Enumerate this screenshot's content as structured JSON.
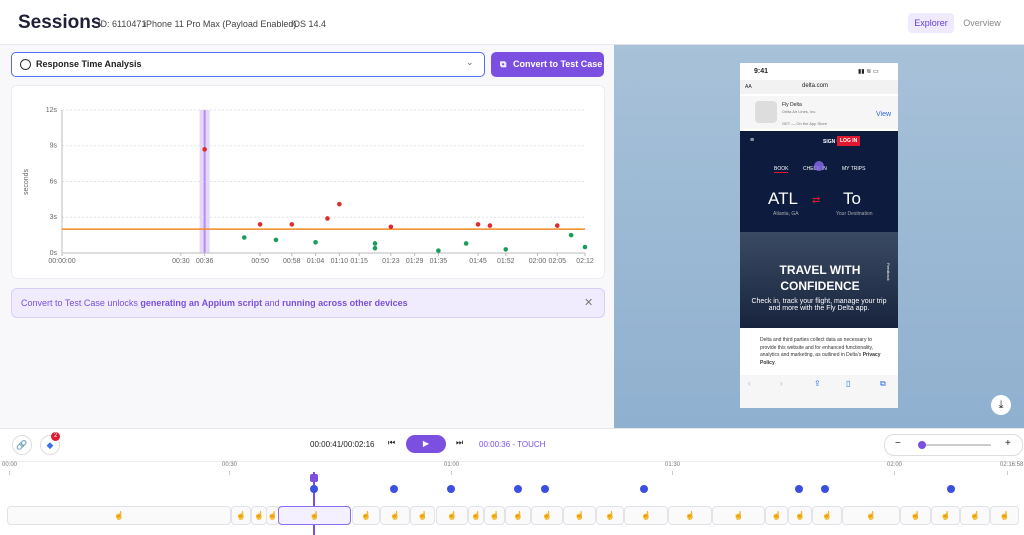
{
  "header": {
    "title": "Sessions",
    "id": "ID: 6110471",
    "device": "iPhone 11 Pro Max (Payload Enabled)",
    "os": "iOS 14.4",
    "tabs": [
      "Explorer",
      "Overview"
    ]
  },
  "toolbar": {
    "dropdown": "Response Time Analysis",
    "button": "Convert to Test Case"
  },
  "chart_data": {
    "type": "scatter",
    "y_label": "seconds",
    "xlim": [
      0,
      132
    ],
    "ylim": [
      0,
      12
    ],
    "xticks": [
      {
        "value": 0,
        "label": "00:00:00"
      },
      {
        "value": 30,
        "label": "00:30"
      },
      {
        "value": 36,
        "label": "00:36"
      },
      {
        "value": 50,
        "label": "00:50"
      },
      {
        "value": 58,
        "label": "00:58"
      },
      {
        "value": 64,
        "label": "01:04"
      },
      {
        "value": 70,
        "label": "01:10"
      },
      {
        "value": 75,
        "label": "01:15"
      },
      {
        "value": 83,
        "label": "01:23"
      },
      {
        "value": 89,
        "label": "01:29"
      },
      {
        "value": 95,
        "label": "01:35"
      },
      {
        "value": 105,
        "label": "01:45"
      },
      {
        "value": 112,
        "label": "01:52"
      },
      {
        "value": 120,
        "label": "02:00"
      },
      {
        "value": 125,
        "label": "02:05"
      },
      {
        "value": 132,
        "label": "02:12"
      }
    ],
    "yticks": [
      {
        "value": 0,
        "label": "0s"
      },
      {
        "value": 3,
        "label": "3s"
      },
      {
        "value": 6,
        "label": "6s"
      },
      {
        "value": 9,
        "label": "9s"
      },
      {
        "value": 12,
        "label": "12s"
      }
    ],
    "grid": true,
    "threshold": 2,
    "threshold_color": "#f08a24",
    "highlight_x": 36,
    "highlight_color": "#b48cf0",
    "series": [
      {
        "color": "#e02b2b",
        "x": [
          36,
          50,
          58,
          67,
          70,
          83,
          105,
          108,
          125
        ],
        "values": [
          8.7,
          2.4,
          2.4,
          2.9,
          4.1,
          2.2,
          2.4,
          2.3,
          2.3
        ]
      },
      {
        "color": "#1a9c5a",
        "x": [
          46,
          54,
          64,
          79,
          79,
          95,
          102,
          112,
          128.5,
          132
        ],
        "values": [
          1.3,
          1.1,
          0.9,
          0.8,
          0.4,
          0.2,
          0.8,
          0.3,
          1.5,
          0.5
        ]
      }
    ]
  },
  "banner": {
    "parts": [
      "Convert to Test Case unlocks ",
      "generating an Appium script",
      " and ",
      "running across other devices"
    ]
  },
  "phone": {
    "time": "9:41",
    "aa": "AA",
    "url": "delta.com",
    "app_name": "Fly Delta",
    "app_company": "Delta Air Lines, Inc.",
    "app_store": "GET — On the App Store",
    "app_view": "View",
    "sign_up": "SIGN UP",
    "log_in": "LOG IN",
    "tabs": [
      "BOOK",
      "CHECK IN",
      "MY TRIPS"
    ],
    "from_code": "ATL",
    "from_city": "Atlanta, GA",
    "to_code": "To",
    "to_city": "Your Destination",
    "promo_title": "TRAVEL WITH CONFIDENCE",
    "promo_text": "Check in, track your flight, manage your trip and more with the Fly Delta app.",
    "feedback": "Feedback",
    "privacy": "Delta and third parties collect data as necessary to provide this website and for enhanced functionality, analytics and marketing, as outlined in Delta's ",
    "privacy_link": "Privacy Policy",
    "privacy_end": "."
  },
  "player": {
    "time": "00:00:41/00:02:16",
    "event": "00:00:36 - TOUCH",
    "badge": "2"
  },
  "timeline": {
    "ticks": [
      "00:00",
      "00:30",
      "01:00",
      "01:30",
      "02:00",
      "02:16:58"
    ]
  }
}
